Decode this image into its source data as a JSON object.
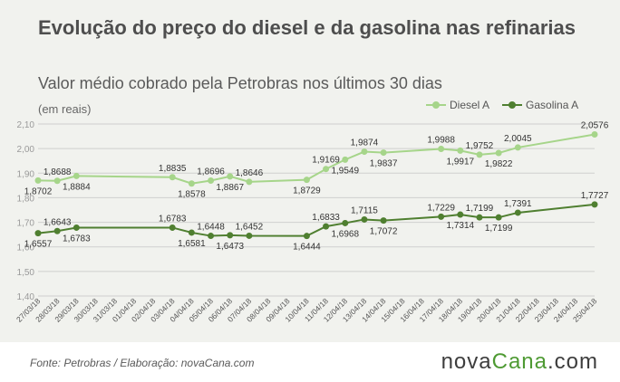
{
  "title": "Evolução do preço do diesel e da gasolina nas refinarias",
  "subtitle": "Valor médio cobrado pela Petrobras nos últimos 30 dias",
  "units_note": "(em reais)",
  "footer": {
    "source": "Fonte:  Petrobras  / Elaboração:  novaCana.com",
    "brand_part1": "nova",
    "brand_part2": "Cana",
    "brand_part3": ".com"
  },
  "colors": {
    "panel": "#f1f2ee",
    "grid": "#cfcfcf",
    "diesel": "#a6d58a",
    "gasolina": "#4f7f30"
  },
  "chart_data": {
    "type": "line",
    "x": [
      "27/03/18",
      "28/03/18",
      "29/03/18",
      "30/03/18",
      "31/03/18",
      "01/04/18",
      "02/04/18",
      "03/04/18",
      "04/04/18",
      "05/04/18",
      "06/04/18",
      "07/04/18",
      "08/04/18",
      "09/04/18",
      "10/04/18",
      "11/04/18",
      "12/04/18",
      "13/04/18",
      "14/04/18",
      "15/04/18",
      "16/04/18",
      "17/04/18",
      "18/04/18",
      "19/04/18",
      "20/04/18",
      "21/04/18",
      "22/04/18",
      "23/04/18",
      "24/04/18",
      "25/04/18"
    ],
    "ylim": [
      1.4,
      2.1
    ],
    "yticks": [
      "1,40",
      "1,50",
      "1,60",
      "1,70",
      "1,80",
      "1,90",
      "2,00",
      "2,10"
    ],
    "grid": true,
    "legend_position": "top-right",
    "series": [
      {
        "name": "Diesel A",
        "color": "#a6d58a",
        "points": [
          {
            "x": "27/03/18",
            "y": 1.8702,
            "label": "1,8702",
            "pos": "below"
          },
          {
            "x": "28/03/18",
            "y": 1.8688,
            "label": "1,8688",
            "pos": "above"
          },
          {
            "x": "29/03/18",
            "y": 1.8884,
            "label": "1,8884",
            "pos": "below"
          },
          {
            "x": "03/04/18",
            "y": 1.8835,
            "label": "1,8835",
            "pos": "above"
          },
          {
            "x": "04/04/18",
            "y": 1.8578,
            "label": "1,8578",
            "pos": "below"
          },
          {
            "x": "05/04/18",
            "y": 1.8696,
            "label": "1,8696",
            "pos": "above"
          },
          {
            "x": "06/04/18",
            "y": 1.8867,
            "label": "1,8867",
            "pos": "below"
          },
          {
            "x": "07/04/18",
            "y": 1.8646,
            "label": "1,8646",
            "pos": "above"
          },
          {
            "x": "10/04/18",
            "y": 1.8729,
            "label": "1,8729",
            "pos": "below"
          },
          {
            "x": "11/04/18",
            "y": 1.9169,
            "label": "1,9169",
            "pos": "above"
          },
          {
            "x": "12/04/18",
            "y": 1.9549,
            "label": "1,9549",
            "pos": "below"
          },
          {
            "x": "13/04/18",
            "y": 1.9874,
            "label": "1,9874",
            "pos": "above"
          },
          {
            "x": "14/04/18",
            "y": 1.9837,
            "label": "1,9837",
            "pos": "below"
          },
          {
            "x": "17/04/18",
            "y": 1.9988,
            "label": "1,9988",
            "pos": "above"
          },
          {
            "x": "18/04/18",
            "y": 1.9917,
            "label": "1,9917",
            "pos": "below"
          },
          {
            "x": "19/04/18",
            "y": 1.9752,
            "label": "1,9752",
            "pos": "above"
          },
          {
            "x": "20/04/18",
            "y": 1.9822,
            "label": "1,9822",
            "pos": "below"
          },
          {
            "x": "21/04/18",
            "y": 2.0045,
            "label": "2,0045",
            "pos": "above"
          },
          {
            "x": "25/04/18",
            "y": 2.0576,
            "label": "2,0576",
            "pos": "above"
          }
        ]
      },
      {
        "name": "Gasolina A",
        "color": "#4f7f30",
        "points": [
          {
            "x": "27/03/18",
            "y": 1.6557,
            "label": "1,6557",
            "pos": "below"
          },
          {
            "x": "28/03/18",
            "y": 1.6643,
            "label": "1,6643",
            "pos": "above"
          },
          {
            "x": "29/03/18",
            "y": 1.6783,
            "label": "1,6783",
            "pos": "below"
          },
          {
            "x": "03/04/18",
            "y": 1.6783,
            "label": "1,6783",
            "pos": "above"
          },
          {
            "x": "04/04/18",
            "y": 1.6581,
            "label": "1,6581",
            "pos": "below"
          },
          {
            "x": "05/04/18",
            "y": 1.6448,
            "label": "1,6448",
            "pos": "above"
          },
          {
            "x": "06/04/18",
            "y": 1.6473,
            "label": "1,6473",
            "pos": "below"
          },
          {
            "x": "07/04/18",
            "y": 1.6452,
            "label": "1,6452",
            "pos": "above"
          },
          {
            "x": "10/04/18",
            "y": 1.6444,
            "label": "1,6444",
            "pos": "below"
          },
          {
            "x": "11/04/18",
            "y": 1.6833,
            "label": "1,6833",
            "pos": "above"
          },
          {
            "x": "12/04/18",
            "y": 1.6968,
            "label": "1,6968",
            "pos": "below"
          },
          {
            "x": "13/04/18",
            "y": 1.7115,
            "label": "1,7115",
            "pos": "above"
          },
          {
            "x": "14/04/18",
            "y": 1.7072,
            "label": "1,7072",
            "pos": "below"
          },
          {
            "x": "17/04/18",
            "y": 1.7229,
            "label": "1,7229",
            "pos": "above"
          },
          {
            "x": "18/04/18",
            "y": 1.7314,
            "label": "1,7314",
            "pos": "below"
          },
          {
            "x": "19/04/18",
            "y": 1.7199,
            "label": "1,7199",
            "pos": "above"
          },
          {
            "x": "20/04/18",
            "y": 1.7199,
            "label": "1,7199",
            "pos": "below"
          },
          {
            "x": "21/04/18",
            "y": 1.7391,
            "label": "1,7391",
            "pos": "above"
          },
          {
            "x": "25/04/18",
            "y": 1.7727,
            "label": "1,7727",
            "pos": "above"
          }
        ]
      }
    ]
  }
}
